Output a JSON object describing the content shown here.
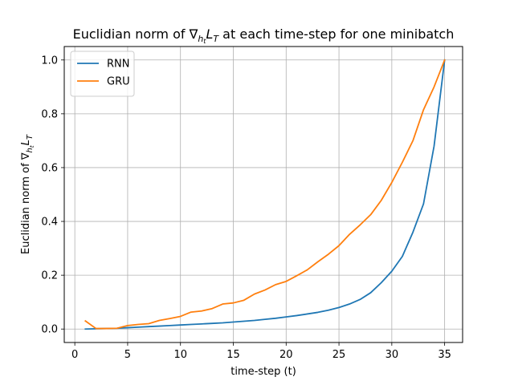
{
  "chart_data": {
    "type": "line",
    "title": "Euclidian norm of ∇hₜLₜ at each time-step for one minibatch",
    "title_parts": {
      "prefix": "Euclidian norm of ∇",
      "sub_h": "h",
      "sub_t": "t",
      "L": "L",
      "sub_T": "T",
      "suffix": " at each time-step for one minibatch"
    },
    "xlabel": "time-step (t)",
    "ylabel": "Euclidian norm of ∇hₜLₜ",
    "ylabel_parts": {
      "prefix": "Euclidian norm of ∇",
      "sub_h": "h",
      "sub_t": "t",
      "L": "L",
      "sub_T": "T"
    },
    "xlim": [
      -1.0,
      36.7
    ],
    "ylim": [
      -0.05,
      1.05
    ],
    "xticks": [
      "0",
      "5",
      "10",
      "15",
      "20",
      "25",
      "30",
      "35"
    ],
    "yticks": [
      "0.0",
      "0.2",
      "0.4",
      "0.6",
      "0.8",
      "1.0"
    ],
    "grid": true,
    "legend_position": "top-left",
    "x": [
      1,
      2,
      3,
      4,
      5,
      6,
      7,
      8,
      9,
      10,
      11,
      12,
      13,
      14,
      15,
      16,
      17,
      18,
      19,
      20,
      21,
      22,
      23,
      24,
      25,
      26,
      27,
      28,
      29,
      30,
      31,
      32,
      33,
      34,
      35
    ],
    "series": [
      {
        "name": "RNN",
        "color": "#1f77b4",
        "values": [
          0.0,
          0.001,
          0.002,
          0.003,
          0.005,
          0.007,
          0.009,
          0.011,
          0.013,
          0.015,
          0.017,
          0.019,
          0.021,
          0.023,
          0.026,
          0.029,
          0.032,
          0.036,
          0.04,
          0.045,
          0.05,
          0.056,
          0.062,
          0.07,
          0.08,
          0.093,
          0.11,
          0.135,
          0.172,
          0.215,
          0.27,
          0.36,
          0.465,
          0.68,
          1.0
        ]
      },
      {
        "name": "GRU",
        "color": "#ff7f0e",
        "values": [
          0.03,
          0.002,
          0.002,
          0.003,
          0.013,
          0.017,
          0.02,
          0.032,
          0.039,
          0.047,
          0.063,
          0.067,
          0.076,
          0.093,
          0.097,
          0.107,
          0.13,
          0.145,
          0.165,
          0.177,
          0.198,
          0.22,
          0.25,
          0.278,
          0.31,
          0.352,
          0.387,
          0.425,
          0.478,
          0.545,
          0.62,
          0.7,
          0.815,
          0.9,
          1.0
        ]
      }
    ]
  }
}
